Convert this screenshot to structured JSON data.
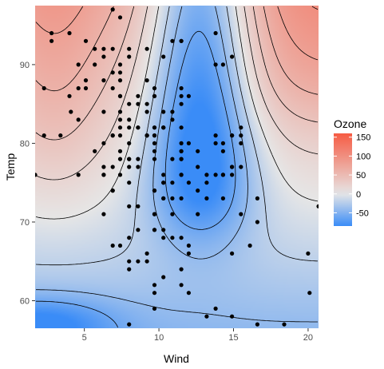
{
  "chart_data": {
    "type": "contour-heatmap",
    "xlabel": "Wind",
    "ylabel": "Temp",
    "xlim": [
      1.7,
      20.7
    ],
    "ylim": [
      56.5,
      97.5
    ],
    "x_ticks": [
      5,
      10,
      15,
      20
    ],
    "y_ticks": [
      60,
      70,
      80,
      90
    ],
    "legend": {
      "title": "Ozone",
      "placement": "right",
      "ticks": [
        150,
        100,
        50,
        0,
        -50
      ],
      "range": [
        -85,
        160
      ],
      "colors": {
        "low": "#3a8cf7",
        "mid": "#e6e6e6",
        "high": "#f65b43"
      }
    },
    "points": [
      [
        7.4,
        67
      ],
      [
        8.0,
        72
      ],
      [
        12.6,
        74
      ],
      [
        11.5,
        62
      ],
      [
        14.3,
        56
      ],
      [
        14.9,
        66
      ],
      [
        8.6,
        65
      ],
      [
        13.8,
        59
      ],
      [
        20.1,
        61
      ],
      [
        8.6,
        69
      ],
      [
        6.9,
        74
      ],
      [
        9.7,
        69
      ],
      [
        9.2,
        66
      ],
      [
        10.9,
        68
      ],
      [
        13.2,
        58
      ],
      [
        11.5,
        64
      ],
      [
        12.0,
        66
      ],
      [
        18.4,
        57
      ],
      [
        11.5,
        68
      ],
      [
        9.7,
        62
      ],
      [
        9.7,
        59
      ],
      [
        16.6,
        73
      ],
      [
        9.7,
        61
      ],
      [
        12.0,
        61
      ],
      [
        16.6,
        57
      ],
      [
        14.9,
        58
      ],
      [
        8.0,
        57
      ],
      [
        12.0,
        67
      ],
      [
        14.9,
        81
      ],
      [
        5.7,
        79
      ],
      [
        7.4,
        76
      ],
      [
        8.6,
        78
      ],
      [
        9.7,
        74
      ],
      [
        16.1,
        67
      ],
      [
        9.2,
        84
      ],
      [
        8.6,
        85
      ],
      [
        14.3,
        79
      ],
      [
        9.7,
        82
      ],
      [
        6.9,
        87
      ],
      [
        13.8,
        90
      ],
      [
        11.5,
        87
      ],
      [
        10.9,
        93
      ],
      [
        9.2,
        92
      ],
      [
        8.0,
        82
      ],
      [
        13.8,
        80
      ],
      [
        11.5,
        79
      ],
      [
        14.9,
        77
      ],
      [
        20.7,
        72
      ],
      [
        9.2,
        65
      ],
      [
        11.5,
        73
      ],
      [
        10.3,
        76
      ],
      [
        6.3,
        77
      ],
      [
        1.7,
        76
      ],
      [
        4.6,
        76
      ],
      [
        6.3,
        76
      ],
      [
        8.0,
        75
      ],
      [
        8.0,
        78
      ],
      [
        10.3,
        73
      ],
      [
        11.5,
        80
      ],
      [
        14.9,
        77
      ],
      [
        8.0,
        83
      ],
      [
        4.1,
        84
      ],
      [
        9.2,
        85
      ],
      [
        9.2,
        81
      ],
      [
        10.9,
        84
      ],
      [
        4.6,
        83
      ],
      [
        10.9,
        83
      ],
      [
        5.1,
        88
      ],
      [
        6.3,
        92
      ],
      [
        5.7,
        92
      ],
      [
        7.4,
        89
      ],
      [
        8.6,
        82
      ],
      [
        14.3,
        73
      ],
      [
        14.9,
        81
      ],
      [
        14.9,
        91
      ],
      [
        14.3,
        80
      ],
      [
        6.9,
        81
      ],
      [
        10.3,
        82
      ],
      [
        6.3,
        84
      ],
      [
        5.1,
        87
      ],
      [
        11.5,
        85
      ],
      [
        6.9,
        74
      ],
      [
        9.7,
        81
      ],
      [
        11.5,
        82
      ],
      [
        8.6,
        86
      ],
      [
        8.0,
        85
      ],
      [
        8.6,
        82
      ],
      [
        12.0,
        86
      ],
      [
        7.4,
        88
      ],
      [
        7.4,
        86
      ],
      [
        7.4,
        83
      ],
      [
        9.2,
        81
      ],
      [
        6.9,
        81
      ],
      [
        13.8,
        81
      ],
      [
        7.4,
        82
      ],
      [
        6.9,
        89
      ],
      [
        7.4,
        90
      ],
      [
        4.6,
        90
      ],
      [
        4.0,
        86
      ],
      [
        10.3,
        82
      ],
      [
        8.0,
        80
      ],
      [
        8.6,
        77
      ],
      [
        11.5,
        79
      ],
      [
        11.5,
        76
      ],
      [
        11.5,
        78
      ],
      [
        9.7,
        78
      ],
      [
        8.0,
        77
      ],
      [
        8.6,
        72
      ],
      [
        12.0,
        75
      ],
      [
        7.4,
        79
      ],
      [
        7.4,
        81
      ],
      [
        7.4,
        86
      ],
      [
        9.2,
        88
      ],
      [
        6.9,
        97
      ],
      [
        13.8,
        94
      ],
      [
        7.4,
        96
      ],
      [
        4.0,
        94
      ],
      [
        10.3,
        91
      ],
      [
        8.0,
        92
      ],
      [
        11.5,
        93
      ],
      [
        11.5,
        93
      ],
      [
        9.7,
        87
      ],
      [
        10.3,
        84
      ],
      [
        6.3,
        80
      ],
      [
        7.4,
        78
      ],
      [
        10.9,
        75
      ],
      [
        10.3,
        73
      ],
      [
        15.5,
        81
      ],
      [
        14.3,
        76
      ],
      [
        12.6,
        77
      ],
      [
        9.7,
        71
      ],
      [
        3.4,
        81
      ],
      [
        8.0,
        91
      ],
      [
        5.7,
        90
      ],
      [
        9.7,
        86
      ],
      [
        2.3,
        87
      ],
      [
        6.3,
        88
      ],
      [
        6.3,
        91
      ],
      [
        6.9,
        92
      ],
      [
        5.1,
        93
      ],
      [
        2.8,
        93
      ],
      [
        4.6,
        87
      ],
      [
        7.4,
        84
      ],
      [
        15.5,
        80
      ],
      [
        10.9,
        78
      ],
      [
        10.3,
        75
      ],
      [
        10.9,
        73
      ],
      [
        9.7,
        81
      ],
      [
        14.9,
        76
      ],
      [
        15.5,
        77
      ],
      [
        6.3,
        71
      ],
      [
        10.9,
        71
      ],
      [
        11.5,
        78
      ],
      [
        6.9,
        67
      ],
      [
        13.8,
        76
      ],
      [
        10.3,
        68
      ],
      [
        10.3,
        82
      ],
      [
        8.0,
        64
      ],
      [
        12.6,
        71
      ],
      [
        9.2,
        81
      ],
      [
        10.3,
        69
      ],
      [
        10.3,
        63
      ],
      [
        16.6,
        70
      ],
      [
        6.9,
        77
      ],
      [
        13.2,
        75
      ],
      [
        14.3,
        76
      ],
      [
        8.0,
        68
      ],
      [
        11.5,
        86
      ],
      [
        9.7,
        74
      ],
      [
        9.7,
        69
      ],
      [
        12.6,
        79
      ],
      [
        15.5,
        82
      ],
      [
        10.3,
        75
      ],
      [
        2.3,
        81
      ],
      [
        8.0,
        78
      ],
      [
        9.7,
        79
      ],
      [
        13.2,
        76
      ],
      [
        14.3,
        90
      ],
      [
        11.5,
        76
      ],
      [
        20.0,
        66
      ],
      [
        9.7,
        86
      ],
      [
        9.7,
        82
      ],
      [
        12.0,
        80
      ],
      [
        8.0,
        65
      ],
      [
        13.2,
        73
      ],
      [
        15.5,
        71
      ],
      [
        9.7,
        80
      ],
      [
        6.3,
        76
      ],
      [
        9.7,
        71
      ],
      [
        2.8,
        94
      ]
    ]
  }
}
